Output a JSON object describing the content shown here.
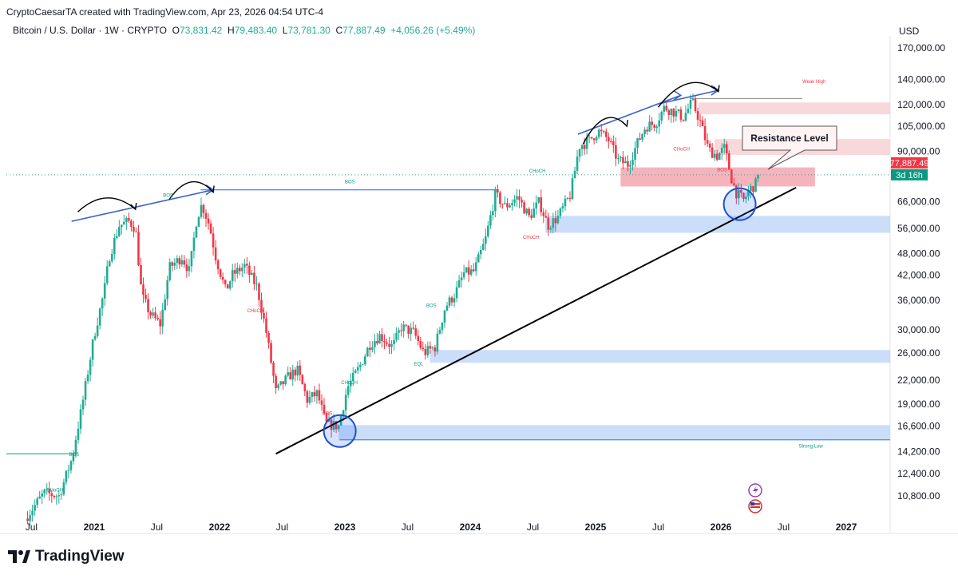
{
  "header": {
    "created_line": "CryptoCaesarTA created with TradingView.com, Apr 23, 2026 04:54 UTC-4"
  },
  "symbol_info": {
    "title": "Bitcoin / U.S. Dollar · 1W · CRYPTO",
    "open_label": "O",
    "open": "73,831.42",
    "high_label": "H",
    "high": "79,483.40",
    "low_label": "L",
    "low": "73,781.30",
    "close_label": "C",
    "close": "77,887.49",
    "change": "+4,056.26 (+5.49%)"
  },
  "currency": "USD",
  "brand": "TradingView",
  "icons": [
    "tradingview-logo-icon",
    "lightning-icon",
    "us-flag-icon"
  ],
  "colors": {
    "bull": "#22ab94",
    "bear": "#f23645",
    "demand_zone": "#b9d3f7",
    "supply_zone": "#f7c8cd",
    "trendline": "#000000",
    "arrow": "#3a62c4",
    "price_badge": "#f23645",
    "countdown_badge": "#089981"
  },
  "chart_data": {
    "type": "candlestick",
    "title": "Bitcoin / U.S. Dollar · 1W · CRYPTO",
    "scale": "log",
    "ylim": [
      9800,
      190000
    ],
    "xlim": [
      "2020-06",
      "2027-04"
    ],
    "y_ticks": [
      170000,
      140000,
      120000,
      105000,
      90000,
      77887.49,
      66000,
      56000,
      48000,
      42000,
      36000,
      30000,
      26000,
      22000,
      19000,
      16600,
      14200,
      12400,
      10800
    ],
    "y_tick_labels": [
      "170,000.00",
      "140,000.00",
      "120,000.00",
      "105,000.00",
      "90,000.00",
      "77,887.49",
      "66,000.00",
      "56,000.00",
      "48,000.00",
      "42,000.00",
      "36,000.00",
      "30,000.00",
      "26,000.00",
      "22,000.00",
      "19,000.00",
      "16,600.00",
      "14,200.00",
      "12,400.00",
      "10,800.00"
    ],
    "x_ticks": [
      2020.5,
      2021.0,
      2021.5,
      2022.0,
      2022.5,
      2023.0,
      2023.5,
      2024.0,
      2024.5,
      2025.0,
      2025.5,
      2026.0,
      2026.5,
      2027.0
    ],
    "x_tick_labels": [
      "Jul",
      "2021",
      "Jul",
      "2022",
      "Jul",
      "2023",
      "Jul",
      "2024",
      "Jul",
      "2025",
      "Jul",
      "2026",
      "Jul",
      "2027"
    ],
    "last_price": 77887.49,
    "last_price_label": "77,887.49",
    "countdown": "3d 16h",
    "price_path": [
      [
        2020.45,
        9400
      ],
      [
        2020.6,
        11000
      ],
      [
        2020.72,
        10800
      ],
      [
        2020.82,
        13500
      ],
      [
        2020.9,
        18500
      ],
      [
        2021.0,
        29000
      ],
      [
        2021.08,
        38000
      ],
      [
        2021.12,
        47000
      ],
      [
        2021.2,
        57000
      ],
      [
        2021.28,
        58500
      ],
      [
        2021.33,
        56000
      ],
      [
        2021.38,
        37000
      ],
      [
        2021.45,
        33000
      ],
      [
        2021.53,
        31000
      ],
      [
        2021.6,
        44000
      ],
      [
        2021.7,
        47000
      ],
      [
        2021.76,
        43000
      ],
      [
        2021.82,
        60000
      ],
      [
        2021.86,
        65000
      ],
      [
        2021.92,
        57000
      ],
      [
        2021.97,
        47000
      ],
      [
        2022.05,
        38000
      ],
      [
        2022.1,
        42000
      ],
      [
        2022.2,
        44500
      ],
      [
        2022.3,
        39000
      ],
      [
        2022.37,
        30000
      ],
      [
        2022.45,
        20500
      ],
      [
        2022.55,
        22500
      ],
      [
        2022.62,
        23500
      ],
      [
        2022.7,
        19500
      ],
      [
        2022.78,
        20300
      ],
      [
        2022.85,
        16800
      ],
      [
        2022.95,
        16600
      ],
      [
        2023.02,
        21000
      ],
      [
        2023.12,
        24000
      ],
      [
        2023.2,
        27500
      ],
      [
        2023.28,
        29000
      ],
      [
        2023.38,
        27000
      ],
      [
        2023.45,
        30500
      ],
      [
        2023.55,
        29500
      ],
      [
        2023.63,
        26000
      ],
      [
        2023.72,
        27000
      ],
      [
        2023.8,
        34500
      ],
      [
        2023.88,
        37500
      ],
      [
        2023.95,
        42500
      ],
      [
        2024.03,
        43000
      ],
      [
        2024.12,
        52000
      ],
      [
        2024.2,
        69000
      ],
      [
        2024.28,
        64000
      ],
      [
        2024.38,
        68000
      ],
      [
        2024.47,
        60000
      ],
      [
        2024.55,
        66000
      ],
      [
        2024.62,
        57000
      ],
      [
        2024.7,
        60000
      ],
      [
        2024.8,
        69000
      ],
      [
        2024.87,
        93000
      ],
      [
        2024.95,
        96000
      ],
      [
        2025.02,
        102000
      ],
      [
        2025.1,
        97000
      ],
      [
        2025.18,
        85000
      ],
      [
        2025.26,
        83000
      ],
      [
        2025.33,
        94000
      ],
      [
        2025.4,
        105000
      ],
      [
        2025.48,
        107000
      ],
      [
        2025.55,
        118000
      ],
      [
        2025.62,
        115000
      ],
      [
        2025.7,
        111000
      ],
      [
        2025.77,
        122000
      ],
      [
        2025.83,
        109000
      ],
      [
        2025.9,
        91000
      ],
      [
        2025.97,
        87500
      ],
      [
        2026.03,
        92000
      ],
      [
        2026.08,
        77000
      ],
      [
        2026.12,
        70000
      ],
      [
        2026.18,
        66500
      ],
      [
        2026.23,
        71000
      ],
      [
        2026.28,
        73800
      ],
      [
        2026.31,
        77887
      ]
    ],
    "zones": [
      {
        "kind": "demand",
        "from": 2022.95,
        "to": 2027.35,
        "low": 15200,
        "high": 16700
      },
      {
        "kind": "demand",
        "from": 2023.68,
        "to": 2027.35,
        "low": 24500,
        "high": 26500
      },
      {
        "kind": "demand",
        "from": 2024.6,
        "to": 2027.35,
        "low": 54500,
        "high": 60500
      },
      {
        "kind": "supply",
        "from": 2025.82,
        "to": 2027.35,
        "low": 113000,
        "high": 121500
      },
      {
        "kind": "supply",
        "from": 2025.95,
        "to": 2027.35,
        "low": 88000,
        "high": 97000
      },
      {
        "kind": "supply",
        "from": 2025.2,
        "to": 2026.75,
        "low": 72500,
        "high": 81500
      }
    ],
    "trendline": [
      [
        2022.45,
        14000
      ],
      [
        2026.6,
        72000
      ]
    ],
    "resistance_label": "Resistance Level",
    "annotations": [
      {
        "text": "BOS",
        "x": 2021.55,
        "y": 68000,
        "color": "#089981"
      },
      {
        "text": "BOS",
        "x": 2023.0,
        "y": 74000,
        "color": "#089981"
      },
      {
        "text": "BOS",
        "x": 2020.8,
        "y": 13800,
        "color": "#089981"
      },
      {
        "text": "BOS",
        "x": 2023.65,
        "y": 34500,
        "color": "#089981"
      },
      {
        "text": "CHoCH",
        "x": 2020.62,
        "y": 11100,
        "color": "#089981"
      },
      {
        "text": "CHoCH",
        "x": 2022.22,
        "y": 33400,
        "color": "#f23645"
      },
      {
        "text": "CHoCH",
        "x": 2022.97,
        "y": 21500,
        "color": "#089981"
      },
      {
        "text": "CHoCH",
        "x": 2024.47,
        "y": 79000,
        "color": "#089981"
      },
      {
        "text": "CHoCH",
        "x": 2024.42,
        "y": 52500,
        "color": "#f23645"
      },
      {
        "text": "CHoCH",
        "x": 2025.62,
        "y": 90500,
        "color": "#f23645"
      },
      {
        "text": "BOS",
        "x": 2022.82,
        "y": 17800,
        "color": "#f23645"
      },
      {
        "text": "BOS",
        "x": 2025.97,
        "y": 79500,
        "color": "#f23645"
      },
      {
        "text": "EQL",
        "x": 2023.55,
        "y": 24100,
        "color": "#089981"
      },
      {
        "text": "Weak High",
        "x": 2026.65,
        "y": 137000,
        "color": "#f23645"
      },
      {
        "text": "Strong Low",
        "x": 2026.62,
        "y": 14550,
        "color": "#089981"
      }
    ],
    "circles": [
      {
        "x": 2022.96,
        "y": 16100
      },
      {
        "x": 2026.15,
        "y": 65000
      }
    ]
  }
}
